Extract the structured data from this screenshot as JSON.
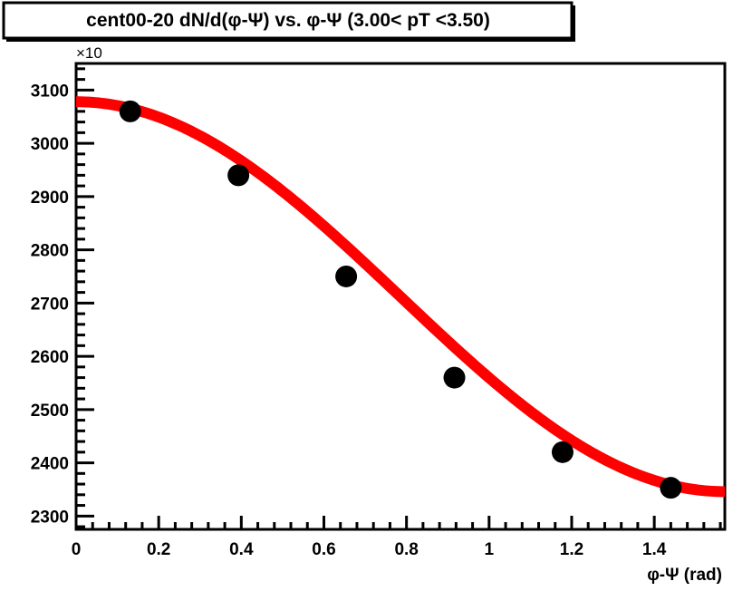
{
  "chart_data": {
    "type": "scatter",
    "title": "cent00-20 dN/d(φ-Ψ) vs. φ-Ψ (3.00< pT <3.50)",
    "xlabel": "φ-Ψ (rad)",
    "ylabel": "",
    "y_multiplier_label": "×10",
    "xlim": [
      0,
      1.5708
    ],
    "ylim": [
      2275,
      3150
    ],
    "xticks": [
      0,
      0.2,
      0.4,
      0.6,
      0.8,
      1,
      1.2,
      1.4
    ],
    "xtick_labels": [
      "0",
      "0.2",
      "0.4",
      "0.6",
      "0.8",
      "1",
      "1.2",
      "1.4"
    ],
    "yticks": [
      2300,
      2400,
      2500,
      2600,
      2700,
      2800,
      2900,
      3000,
      3100
    ],
    "ytick_labels": [
      "2300",
      "2400",
      "2500",
      "2600",
      "2700",
      "2800",
      "2900",
      "3000",
      "3100"
    ],
    "grid": false,
    "series": [
      {
        "kind": "points",
        "marker": "filled-circle",
        "color": "#000000",
        "x": [
          0.131,
          0.393,
          0.654,
          0.916,
          1.178,
          1.44
        ],
        "y": [
          3060,
          2940,
          2750,
          2560,
          2420,
          2353
        ]
      },
      {
        "kind": "fit",
        "function": "p0*(1 + 2*v2*cos(2x))",
        "p0": 2712,
        "v2": 0.0675,
        "color": "#ff0000"
      }
    ]
  }
}
